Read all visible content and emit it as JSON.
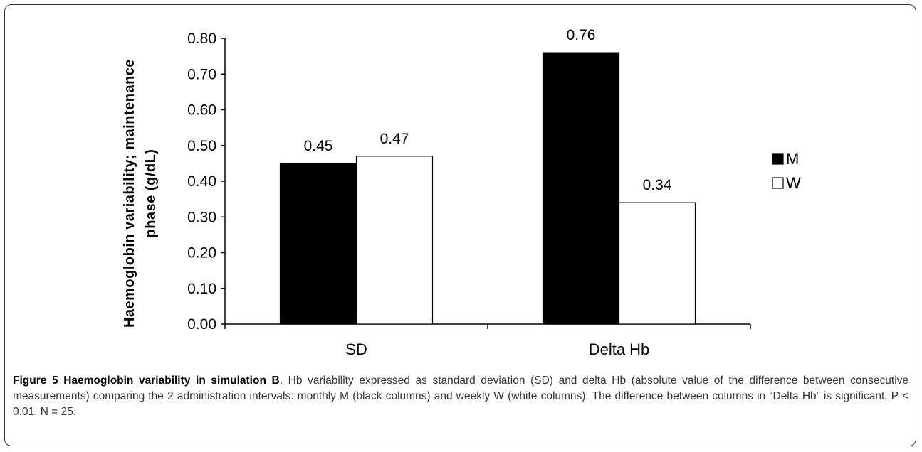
{
  "chart_data": {
    "type": "bar",
    "categories": [
      "SD",
      "Delta Hb"
    ],
    "series": [
      {
        "name": "M",
        "values": [
          0.45,
          0.76
        ],
        "color": "#000000"
      },
      {
        "name": "W",
        "values": [
          0.47,
          0.34
        ],
        "color": "#ffffff"
      }
    ],
    "data_labels": [
      [
        "0.45",
        "0.76"
      ],
      [
        "0.47",
        "0.34"
      ]
    ],
    "ylabel_line1": "Haemoglobin variability; maintenance",
    "ylabel_line2": "phase (g/dL)",
    "ylim": [
      0,
      0.8
    ],
    "yticks": [
      "0.00",
      "0.10",
      "0.20",
      "0.30",
      "0.40",
      "0.50",
      "0.60",
      "0.70",
      "0.80"
    ],
    "legend_position": "right",
    "grid": false
  },
  "caption": {
    "title": "Figure 5 Haemoglobin variability in simulation B",
    "body": ". Hb variability expressed as standard deviation (SD) and delta Hb (absolute value of the difference between consecutive measurements) comparing the 2 administration intervals: monthly M (black columns) and weekly W (white columns). The difference between columns in “Delta Hb” is significant; P < 0.01. N = 25."
  }
}
